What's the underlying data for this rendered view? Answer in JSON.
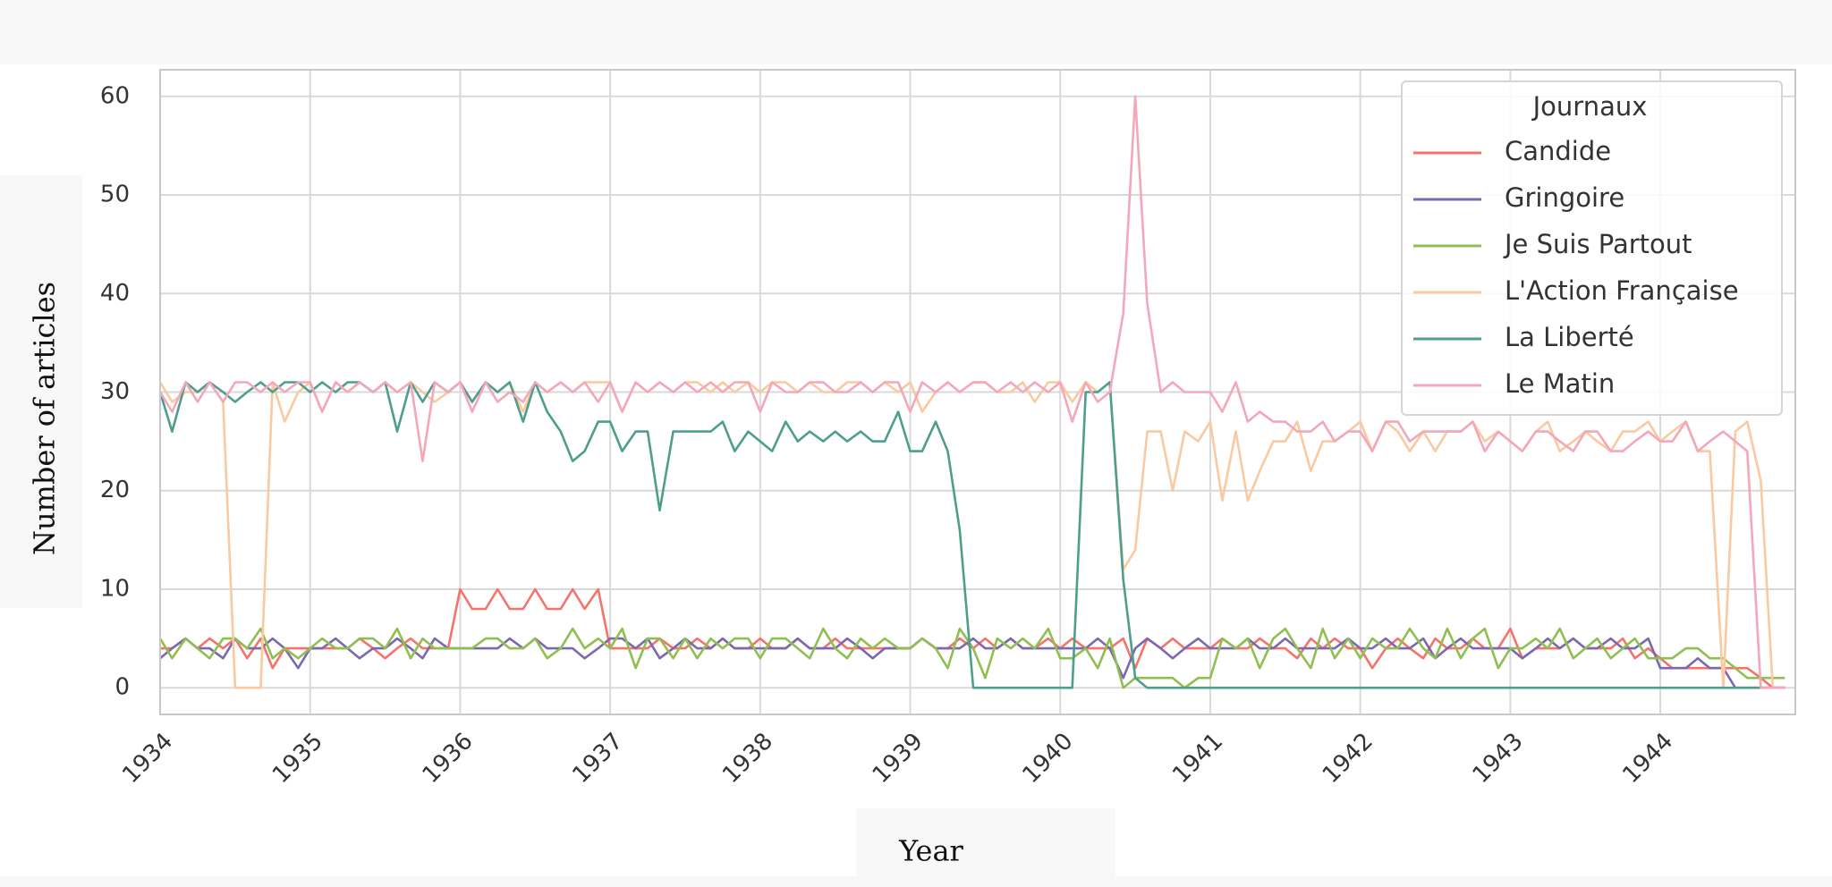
{
  "chart_data": {
    "type": "line",
    "x_label": "Year",
    "y_label": "Number of articles",
    "legend_title": "Journaux",
    "legend": "upper right",
    "grid": true,
    "xlim": [
      1934,
      1944.9
    ],
    "xticks": [
      1934,
      1935,
      1936,
      1937,
      1938,
      1939,
      1940,
      1941,
      1942,
      1943,
      1944
    ],
    "ylim": [
      -2.7,
      62.7
    ],
    "yticks": [
      0,
      10,
      20,
      30,
      40,
      50,
      60
    ],
    "x": [
      1934,
      1934.08,
      1934.17,
      1934.25,
      1934.33,
      1934.42,
      1934.5,
      1934.58,
      1934.67,
      1934.75,
      1934.83,
      1934.92,
      1935,
      1935.08,
      1935.17,
      1935.25,
      1935.33,
      1935.42,
      1935.5,
      1935.58,
      1935.67,
      1935.75,
      1935.83,
      1935.92,
      1936,
      1936.08,
      1936.17,
      1936.25,
      1936.33,
      1936.42,
      1936.5,
      1936.58,
      1936.67,
      1936.75,
      1936.83,
      1936.92,
      1937,
      1937.08,
      1937.17,
      1937.25,
      1937.33,
      1937.42,
      1937.5,
      1937.58,
      1937.67,
      1937.75,
      1937.83,
      1937.92,
      1938,
      1938.08,
      1938.17,
      1938.25,
      1938.33,
      1938.42,
      1938.5,
      1938.58,
      1938.67,
      1938.75,
      1938.83,
      1938.92,
      1939,
      1939.08,
      1939.17,
      1939.25,
      1939.33,
      1939.42,
      1939.5,
      1939.58,
      1939.67,
      1939.75,
      1939.83,
      1939.92,
      1940,
      1940.08,
      1940.17,
      1940.25,
      1940.33,
      1940.42,
      1940.5,
      1940.58,
      1940.67,
      1940.75,
      1940.83,
      1940.92,
      1941,
      1941.08,
      1941.17,
      1941.25,
      1941.33,
      1941.42,
      1941.5,
      1941.58,
      1941.67,
      1941.75,
      1941.83,
      1941.92,
      1942,
      1942.08,
      1942.17,
      1942.25,
      1942.33,
      1942.42,
      1942.5,
      1942.58,
      1942.67,
      1942.75,
      1942.83,
      1942.92,
      1943,
      1943.08,
      1943.17,
      1943.25,
      1943.33,
      1943.42,
      1943.5,
      1943.58,
      1943.67,
      1943.75,
      1943.83,
      1943.92,
      1944,
      1944.08,
      1944.17,
      1944.25,
      1944.33,
      1944.42,
      1944.5,
      1944.58,
      1944.67,
      1944.75,
      1944.83
    ],
    "series": [
      {
        "name": "Candide",
        "color": "#f4736b",
        "values": [
          4,
          4,
          5,
          4,
          5,
          4,
          5,
          3,
          5,
          2,
          4,
          4,
          4,
          4,
          4,
          4,
          5,
          4,
          3,
          4,
          5,
          4,
          4,
          4,
          10,
          8,
          8,
          10,
          8,
          8,
          10,
          8,
          8,
          10,
          8,
          10,
          4,
          4,
          4,
          4,
          5,
          4,
          4,
          5,
          4,
          5,
          4,
          4,
          5,
          4,
          4,
          5,
          4,
          4,
          5,
          4,
          4,
          4,
          4,
          4,
          4,
          5,
          4,
          4,
          5,
          4,
          5,
          4,
          5,
          4,
          4,
          5,
          4,
          5,
          4,
          4,
          4,
          5,
          2,
          5,
          4,
          5,
          4,
          4,
          4,
          5,
          4,
          4,
          5,
          4,
          4,
          3,
          5,
          4,
          5,
          4,
          4,
          2,
          4,
          5,
          4,
          3,
          5,
          4,
          4,
          5,
          4,
          4,
          6,
          3,
          4,
          4,
          4,
          5,
          4,
          4,
          4,
          5,
          3,
          4,
          3,
          2,
          2,
          2,
          2,
          2,
          2,
          2,
          1,
          0,
          0
        ]
      },
      {
        "name": "Gringoire",
        "color": "#7b68b0",
        "values": [
          3,
          4,
          5,
          4,
          4,
          3,
          5,
          4,
          4,
          5,
          4,
          2,
          4,
          4,
          5,
          4,
          3,
          4,
          4,
          5,
          4,
          3,
          5,
          4,
          4,
          4,
          4,
          4,
          5,
          4,
          5,
          4,
          4,
          4,
          3,
          4,
          5,
          5,
          4,
          5,
          3,
          4,
          5,
          4,
          4,
          5,
          4,
          4,
          4,
          4,
          4,
          5,
          4,
          4,
          4,
          5,
          4,
          3,
          4,
          4,
          4,
          5,
          4,
          4,
          4,
          5,
          4,
          4,
          5,
          4,
          4,
          4,
          4,
          4,
          4,
          5,
          4,
          1,
          4,
          5,
          4,
          3,
          4,
          5,
          4,
          4,
          4,
          5,
          4,
          4,
          5,
          4,
          4,
          4,
          4,
          5,
          4,
          4,
          5,
          4,
          4,
          5,
          3,
          4,
          5,
          4,
          4,
          4,
          4,
          3,
          4,
          5,
          4,
          5,
          4,
          4,
          5,
          4,
          4,
          5,
          2,
          2,
          2,
          3,
          2,
          2,
          0,
          0,
          0,
          0,
          0
        ]
      },
      {
        "name": "Je Suis Partout",
        "color": "#8fbf50",
        "values": [
          5,
          3,
          5,
          4,
          3,
          5,
          5,
          4,
          6,
          3,
          4,
          3,
          4,
          5,
          4,
          4,
          5,
          5,
          4,
          6,
          3,
          5,
          4,
          4,
          4,
          4,
          5,
          5,
          4,
          4,
          5,
          3,
          4,
          6,
          4,
          5,
          4,
          6,
          2,
          5,
          5,
          3,
          5,
          3,
          5,
          4,
          5,
          5,
          3,
          5,
          5,
          4,
          3,
          6,
          4,
          3,
          5,
          4,
          5,
          4,
          4,
          5,
          4,
          2,
          6,
          4,
          1,
          5,
          4,
          5,
          4,
          6,
          3,
          3,
          4,
          2,
          5,
          0,
          1,
          1,
          1,
          1,
          0,
          1,
          1,
          5,
          4,
          5,
          2,
          5,
          6,
          4,
          2,
          6,
          3,
          5,
          3,
          5,
          4,
          4,
          6,
          4,
          3,
          6,
          3,
          5,
          6,
          2,
          4,
          4,
          5,
          4,
          6,
          3,
          4,
          5,
          3,
          4,
          5,
          3,
          3,
          3,
          4,
          4,
          3,
          3,
          2,
          1,
          1,
          1,
          1
        ]
      },
      {
        "name": "L'Action Française",
        "color": "#fbc99f",
        "values": [
          31,
          29,
          30,
          30,
          31,
          29,
          0,
          0,
          0,
          31,
          27,
          30,
          31,
          28,
          31,
          30,
          31,
          30,
          31,
          30,
          31,
          30,
          29,
          30,
          31,
          29,
          31,
          30,
          31,
          28,
          31,
          30,
          31,
          30,
          31,
          31,
          31,
          28,
          31,
          30,
          31,
          30,
          31,
          31,
          30,
          31,
          30,
          31,
          30,
          31,
          31,
          30,
          31,
          30,
          30,
          31,
          31,
          30,
          31,
          30,
          31,
          28,
          30,
          31,
          30,
          31,
          31,
          30,
          30,
          31,
          29,
          31,
          31,
          29,
          31,
          30,
          31,
          12,
          14,
          26,
          26,
          20,
          26,
          25,
          27,
          19,
          26,
          19,
          22,
          25,
          25,
          27,
          22,
          25,
          25,
          26,
          27,
          24,
          27,
          26,
          24,
          26,
          24,
          26,
          26,
          27,
          25,
          26,
          25,
          24,
          26,
          27,
          24,
          25,
          26,
          25,
          24,
          26,
          26,
          27,
          25,
          26,
          27,
          24,
          24,
          0,
          26,
          27,
          21,
          0,
          0
        ]
      },
      {
        "name": "La Liberté",
        "color": "#4e9e8c",
        "values": [
          30,
          26,
          31,
          30,
          31,
          30,
          29,
          30,
          31,
          30,
          31,
          31,
          30,
          31,
          30,
          31,
          31,
          30,
          31,
          26,
          31,
          29,
          31,
          30,
          31,
          29,
          31,
          30,
          31,
          27,
          31,
          28,
          26,
          23,
          24,
          27,
          27,
          24,
          26,
          26,
          18,
          26,
          26,
          26,
          26,
          27,
          24,
          26,
          25,
          24,
          27,
          25,
          26,
          25,
          26,
          25,
          26,
          25,
          25,
          28,
          24,
          24,
          27,
          24,
          16,
          0,
          0,
          0,
          0,
          0,
          0,
          0,
          0,
          0,
          30,
          30,
          31,
          11,
          1,
          0,
          0,
          0,
          0,
          0,
          0,
          0,
          0,
          0,
          0,
          0,
          0,
          0,
          0,
          0,
          0,
          0,
          0,
          0,
          0,
          0,
          0,
          0,
          0,
          0,
          0,
          0,
          0,
          0,
          0,
          0,
          0,
          0,
          0,
          0,
          0,
          0,
          0,
          0,
          0,
          0,
          0,
          0,
          0,
          0,
          0,
          0,
          0,
          0,
          0,
          0,
          0
        ]
      },
      {
        "name": "Le Matin",
        "color": "#f4a7b9",
        "values": [
          30,
          28,
          31,
          29,
          31,
          29,
          31,
          31,
          30,
          31,
          30,
          31,
          31,
          28,
          31,
          30,
          31,
          30,
          31,
          30,
          31,
          23,
          31,
          30,
          31,
          28,
          31,
          29,
          30,
          29,
          31,
          30,
          31,
          30,
          31,
          29,
          31,
          28,
          31,
          30,
          31,
          30,
          31,
          30,
          31,
          30,
          31,
          31,
          28,
          31,
          30,
          30,
          31,
          31,
          30,
          30,
          31,
          30,
          31,
          31,
          28,
          31,
          30,
          31,
          30,
          31,
          31,
          30,
          31,
          30,
          31,
          30,
          31,
          27,
          31,
          29,
          30,
          38,
          60,
          39,
          30,
          31,
          30,
          30,
          30,
          28,
          31,
          27,
          28,
          27,
          27,
          26,
          26,
          27,
          25,
          26,
          26,
          24,
          27,
          27,
          25,
          26,
          26,
          26,
          26,
          27,
          24,
          26,
          25,
          24,
          26,
          26,
          25,
          24,
          26,
          26,
          24,
          24,
          25,
          26,
          25,
          25,
          27,
          24,
          25,
          26,
          25,
          24,
          0,
          0,
          0
        ]
      }
    ]
  }
}
